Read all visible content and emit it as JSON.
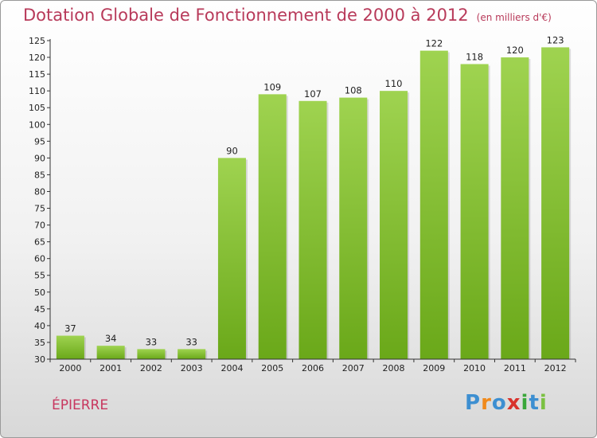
{
  "header": {
    "title": "Dotation Globale de Fonctionnement de 2000 à 2012",
    "unit": "(en milliers d'€)"
  },
  "footer": {
    "commune": "ÉPIERRE",
    "logo_text": "Proxiti"
  },
  "colors": {
    "bar_top": "#9fd350",
    "bar_bottom": "#6aa819",
    "title": "#b83a5a",
    "commune": "#c8375f",
    "logo": [
      "#3d8fd1",
      "#f08a1c",
      "#3d8fd1",
      "#d8322c",
      "#3aa73a",
      "#3d8fd1",
      "#7bc142"
    ]
  },
  "chart_data": {
    "type": "bar",
    "title": "Dotation Globale de Fonctionnement de 2000 à 2012",
    "subtitle": "(en milliers d'€)",
    "categories": [
      "2000",
      "2001",
      "2002",
      "2003",
      "2004",
      "2005",
      "2006",
      "2007",
      "2008",
      "2009",
      "2010",
      "2011",
      "2012"
    ],
    "values": [
      37,
      34,
      33,
      33,
      90,
      109,
      107,
      108,
      110,
      122,
      118,
      120,
      123
    ],
    "ylim": [
      30,
      125
    ],
    "yticks": [
      30,
      35,
      40,
      45,
      50,
      55,
      60,
      65,
      70,
      75,
      80,
      85,
      90,
      95,
      100,
      105,
      110,
      115,
      120,
      125
    ],
    "grid": false,
    "legend": "none"
  }
}
